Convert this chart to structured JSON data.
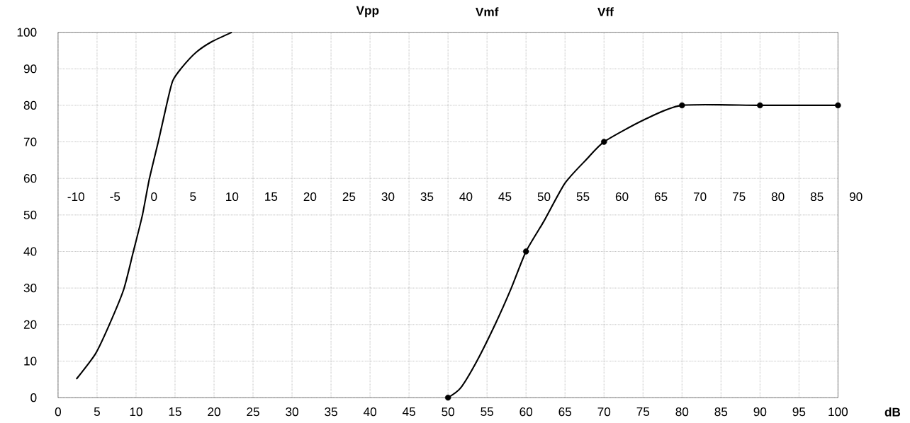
{
  "chart_data": {
    "type": "line",
    "xlabel": "dB",
    "xlim": [
      0,
      100
    ],
    "xticks": [
      0,
      5,
      10,
      15,
      20,
      25,
      30,
      35,
      40,
      45,
      50,
      55,
      60,
      65,
      70,
      75,
      80,
      85,
      90,
      95,
      100
    ],
    "ylim": [
      0,
      100
    ],
    "yticks": [
      0,
      10,
      20,
      30,
      40,
      50,
      60,
      70,
      80,
      90,
      100
    ],
    "x2lim": [
      -10,
      90
    ],
    "x2ticks": [
      -10,
      -5,
      0,
      5,
      10,
      15,
      20,
      25,
      30,
      35,
      40,
      45,
      50,
      55,
      60,
      65,
      70,
      75,
      80,
      85,
      90
    ],
    "grid": true,
    "line_style": "solid",
    "series": [
      {
        "color": "#000000",
        "marker": "none",
        "x": [
          2.4,
          4.8,
          6.5,
          8.4,
          9.6,
          10.8,
          11.7,
          12.9,
          13.9,
          14.7,
          15.9,
          17.7,
          19.7,
          22.2
        ],
        "values": [
          5.2,
          12,
          19.6,
          29.5,
          39.5,
          49.8,
          59.8,
          70.5,
          80,
          86.7,
          90.4,
          94.5,
          97.4,
          99.9
        ]
      },
      {
        "color": "#000000",
        "marker": "none",
        "x": [
          50,
          51.6,
          53.7,
          56.1,
          58.1,
          60,
          62.3,
          65,
          67.8,
          70,
          75.1,
          80,
          90,
          100
        ],
        "values": [
          0,
          2.6,
          10,
          20.3,
          29.9,
          40,
          48.3,
          58.7,
          65.3,
          70,
          76,
          80,
          80,
          80
        ]
      },
      {
        "type": "scatter",
        "color": "#000000",
        "marker": "circle",
        "x": [
          50,
          60,
          70,
          80,
          90,
          100
        ],
        "values": [
          0,
          40,
          70,
          80,
          80,
          80
        ]
      }
    ],
    "annotations": [
      "Vpp",
      "Vmf",
      "Vff"
    ]
  }
}
